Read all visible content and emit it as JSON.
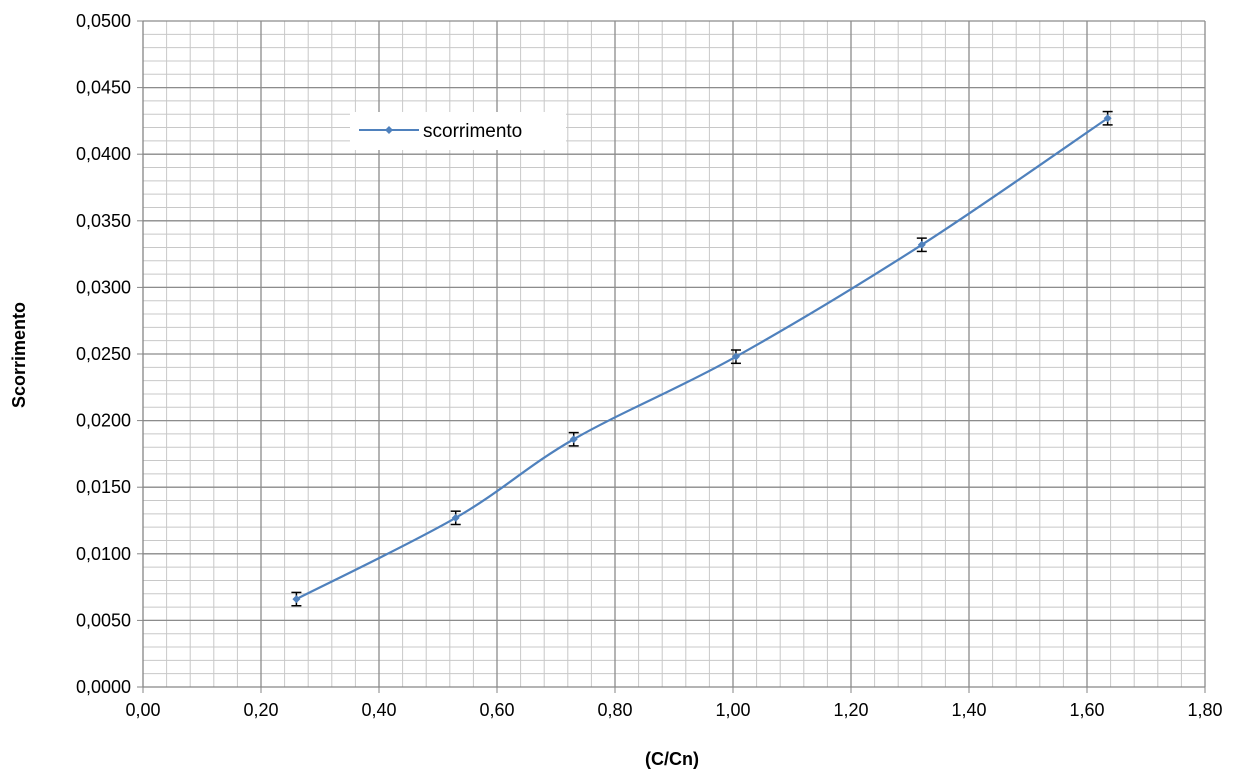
{
  "chart_data": {
    "type": "line",
    "title": "",
    "xlabel": "(C/Cn)",
    "ylabel": "Scorrimento",
    "xlim": [
      0,
      1.8
    ],
    "ylim": [
      0,
      0.05
    ],
    "x_major_step": 0.2,
    "y_major_step": 0.005,
    "x_minor_step": 0.04,
    "y_minor_step": 0.001,
    "x_tick_labels": [
      "0,00",
      "0,20",
      "0,40",
      "0,60",
      "0,80",
      "1,00",
      "1,20",
      "1,40",
      "1,60",
      "1,80"
    ],
    "y_tick_labels": [
      "0,0000",
      "0,0050",
      "0,0100",
      "0,0150",
      "0,0200",
      "0,0250",
      "0,0300",
      "0,0350",
      "0,0400",
      "0,0450",
      "0,0500"
    ],
    "grid": true,
    "smooth": true,
    "legend": {
      "position": "top-left, inside plot",
      "entries": [
        "scorrimento"
      ]
    },
    "series": [
      {
        "name": "scorrimento",
        "color": "#4f81bd",
        "x": [
          0.26,
          0.53,
          0.73,
          1.005,
          1.32,
          1.635
        ],
        "y": [
          0.0066,
          0.0127,
          0.0186,
          0.0248,
          0.0332,
          0.0427
        ],
        "error": [
          0.0005,
          0.0005,
          0.0005,
          0.0005,
          0.0005,
          0.0005
        ]
      }
    ]
  }
}
